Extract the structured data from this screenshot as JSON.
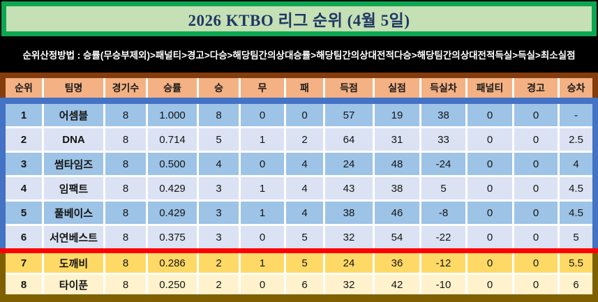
{
  "title": "2026 KTBO 리그 순위 (4월 5일)",
  "criteria": "순위산정방법 : 승률(무승부제외)>패널티>경고>다승>해당팀간의상대승률>해당팀간의상대전적다승>해당팀간의상대전적득실>득실>최소실점",
  "colors": {
    "title_bg": "#C5E0B4",
    "title_border": "#0CA750",
    "title_text": "#1F3864",
    "criteria_bg": "#000000",
    "criteria_text": "#FFFFFF",
    "header_bg": "#F4B183",
    "header_border_brown": "#843C0C",
    "blue_accent": "#4472C4",
    "row_blue": "#9DC3E6",
    "row_blue_light": "#DBE2F3",
    "divider_red": "#FF0000",
    "row_gold": "#FFD966",
    "row_gold_light": "#FFF2CC",
    "gold_border_olive": "#7F6000",
    "gridlines": "#FFFFFF"
  },
  "chart_data": {
    "type": "table",
    "title": "2026 KTBO 리그 순위 (4월 5일)",
    "columns": [
      "순위",
      "팀명",
      "경기수",
      "승률",
      "승",
      "무",
      "패",
      "득점",
      "실점",
      "득실차",
      "패널티",
      "경고",
      "승차"
    ],
    "upper_rows": [
      [
        "1",
        "어셈블",
        "8",
        "1.000",
        "8",
        "0",
        "0",
        "57",
        "19",
        "38",
        "0",
        "0",
        "-"
      ],
      [
        "2",
        "DNA",
        "8",
        "0.714",
        "5",
        "1",
        "2",
        "64",
        "31",
        "33",
        "0",
        "0",
        "2.5"
      ],
      [
        "3",
        "썸타임즈",
        "8",
        "0.500",
        "4",
        "0",
        "4",
        "24",
        "48",
        "-24",
        "0",
        "0",
        "4"
      ],
      [
        "4",
        "임팩트",
        "8",
        "0.429",
        "3",
        "1",
        "4",
        "43",
        "38",
        "5",
        "0",
        "0",
        "4.5"
      ],
      [
        "5",
        "풀베이스",
        "8",
        "0.429",
        "3",
        "1",
        "4",
        "38",
        "46",
        "-8",
        "0",
        "0",
        "4.5"
      ],
      [
        "6",
        "서연베스트",
        "8",
        "0.375",
        "3",
        "0",
        "5",
        "32",
        "54",
        "-22",
        "0",
        "0",
        "5"
      ]
    ],
    "lower_rows": [
      [
        "7",
        "도깨비",
        "8",
        "0.286",
        "2",
        "1",
        "5",
        "24",
        "36",
        "-12",
        "0",
        "0",
        "5.5"
      ],
      [
        "8",
        "타이푼",
        "8",
        "0.250",
        "2",
        "0",
        "6",
        "32",
        "42",
        "-10",
        "0",
        "0",
        "6"
      ]
    ]
  }
}
